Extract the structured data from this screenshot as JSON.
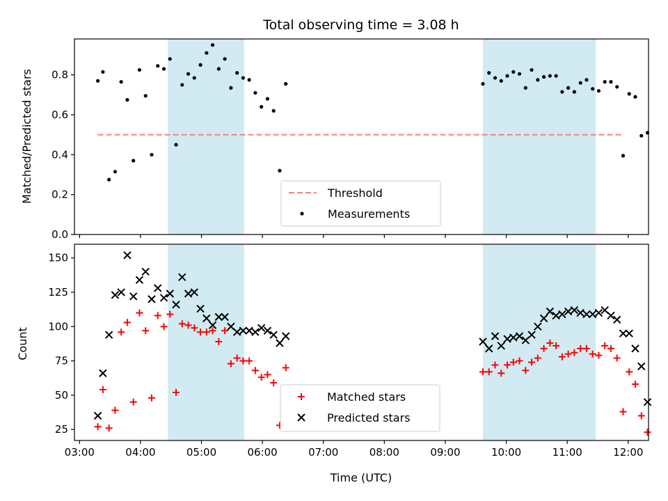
{
  "chart_data": {
    "title": "Total observing time = 3.08 h",
    "xlabel": "Time (UTC)",
    "x_unit": "hours UTC",
    "x_ticks": [
      "03:00",
      "04:00",
      "05:00",
      "06:00",
      "07:00",
      "08:00",
      "09:00",
      "10:00",
      "11:00",
      "12:00"
    ],
    "xlim": [
      "02:55",
      "12:20"
    ],
    "shaded_intervals": [
      {
        "start": "04:27",
        "end": "05:42"
      },
      {
        "start": "09:37",
        "end": "11:28"
      }
    ],
    "shade_color": "#add8e6",
    "panels": [
      {
        "type": "scatter",
        "ylabel": "Matched/Predicted stars",
        "ylim": [
          0,
          0.98
        ],
        "y_ticks": [
          "0.0",
          "0.2",
          "0.4",
          "0.6",
          "0.8"
        ],
        "legend_position": "lower-center",
        "threshold": {
          "name": "Threshold",
          "value": 0.5,
          "x_start": "03:18",
          "x_end": "11:55",
          "color": "#f08080"
        },
        "series": [
          {
            "name": "Measurements",
            "color": "#000000",
            "marker": "dot",
            "points": [
              [
                "03:18",
                0.77
              ],
              [
                "03:23",
                0.815
              ],
              [
                "03:29",
                0.275
              ],
              [
                "03:35",
                0.315
              ],
              [
                "03:41",
                0.765
              ],
              [
                "03:47",
                0.675
              ],
              [
                "03:53",
                0.37
              ],
              [
                "03:59",
                0.825
              ],
              [
                "04:05",
                0.695
              ],
              [
                "04:11",
                0.4
              ],
              [
                "04:17",
                0.845
              ],
              [
                "04:23",
                0.83
              ],
              [
                "04:29",
                0.88
              ],
              [
                "04:35",
                0.45
              ],
              [
                "04:41",
                0.75
              ],
              [
                "04:47",
                0.805
              ],
              [
                "04:53",
                0.785
              ],
              [
                "04:59",
                0.85
              ],
              [
                "05:05",
                0.91
              ],
              [
                "05:11",
                0.95
              ],
              [
                "05:17",
                0.83
              ],
              [
                "05:23",
                0.88
              ],
              [
                "05:29",
                0.735
              ],
              [
                "05:35",
                0.81
              ],
              [
                "05:41",
                0.785
              ],
              [
                "05:47",
                0.775
              ],
              [
                "05:53",
                0.71
              ],
              [
                "05:59",
                0.64
              ],
              [
                "06:05",
                0.68
              ],
              [
                "06:11",
                0.62
              ],
              [
                "06:17",
                0.32
              ],
              [
                "06:23",
                0.755
              ],
              [
                "09:37",
                0.755
              ],
              [
                "09:43",
                0.81
              ],
              [
                "09:49",
                0.785
              ],
              [
                "09:55",
                0.77
              ],
              [
                "10:01",
                0.795
              ],
              [
                "10:07",
                0.815
              ],
              [
                "10:13",
                0.805
              ],
              [
                "10:19",
                0.735
              ],
              [
                "10:25",
                0.825
              ],
              [
                "10:31",
                0.775
              ],
              [
                "10:37",
                0.79
              ],
              [
                "10:43",
                0.795
              ],
              [
                "10:49",
                0.795
              ],
              [
                "10:55",
                0.715
              ],
              [
                "11:01",
                0.735
              ],
              [
                "11:07",
                0.715
              ],
              [
                "11:13",
                0.76
              ],
              [
                "11:19",
                0.775
              ],
              [
                "11:25",
                0.73
              ],
              [
                "11:31",
                0.72
              ],
              [
                "11:37",
                0.765
              ],
              [
                "11:43",
                0.765
              ],
              [
                "11:49",
                0.74
              ],
              [
                "11:55",
                0.395
              ],
              [
                "12:01",
                0.705
              ],
              [
                "12:07",
                0.69
              ],
              [
                "12:13",
                0.495
              ],
              [
                "12:19",
                0.51
              ]
            ]
          }
        ]
      },
      {
        "type": "scatter",
        "ylabel": "Count",
        "ylim": [
          17,
          160
        ],
        "y_ticks": [
          "25",
          "50",
          "75",
          "100",
          "125",
          "150"
        ],
        "legend_position": "lower-center",
        "series": [
          {
            "name": "Matched stars",
            "color": "#ff0000",
            "marker": "plus",
            "points": [
              [
                "03:18",
                27
              ],
              [
                "03:23",
                54
              ],
              [
                "03:29",
                26
              ],
              [
                "03:35",
                39
              ],
              [
                "03:41",
                96
              ],
              [
                "03:47",
                103
              ],
              [
                "03:53",
                45
              ],
              [
                "03:59",
                110
              ],
              [
                "04:05",
                97
              ],
              [
                "04:11",
                48
              ],
              [
                "04:17",
                108
              ],
              [
                "04:23",
                100
              ],
              [
                "04:29",
                109
              ],
              [
                "04:35",
                52
              ],
              [
                "04:41",
                102
              ],
              [
                "04:47",
                101
              ],
              [
                "04:53",
                99
              ],
              [
                "04:59",
                96
              ],
              [
                "05:05",
                96
              ],
              [
                "05:11",
                97
              ],
              [
                "05:17",
                89
              ],
              [
                "05:23",
                97
              ],
              [
                "05:29",
                73
              ],
              [
                "05:35",
                77
              ],
              [
                "05:41",
                75
              ],
              [
                "05:47",
                75
              ],
              [
                "05:53",
                68
              ],
              [
                "05:59",
                63
              ],
              [
                "06:05",
                65
              ],
              [
                "06:11",
                59
              ],
              [
                "06:17",
                28
              ],
              [
                "06:23",
                70
              ],
              [
                "09:37",
                67
              ],
              [
                "09:43",
                67
              ],
              [
                "09:49",
                72
              ],
              [
                "09:55",
                66
              ],
              [
                "10:01",
                72
              ],
              [
                "10:07",
                74
              ],
              [
                "10:13",
                75
              ],
              [
                "10:19",
                68
              ],
              [
                "10:25",
                74
              ],
              [
                "10:31",
                77
              ],
              [
                "10:37",
                84
              ],
              [
                "10:43",
                88
              ],
              [
                "10:49",
                86
              ],
              [
                "10:55",
                78
              ],
              [
                "11:01",
                80
              ],
              [
                "11:07",
                81
              ],
              [
                "11:13",
                84
              ],
              [
                "11:19",
                84
              ],
              [
                "11:25",
                80
              ],
              [
                "11:31",
                79
              ],
              [
                "11:37",
                86
              ],
              [
                "11:43",
                84
              ],
              [
                "11:49",
                77
              ],
              [
                "11:55",
                38
              ],
              [
                "12:01",
                67
              ],
              [
                "12:07",
                58
              ],
              [
                "12:13",
                35
              ],
              [
                "12:19",
                23
              ]
            ]
          },
          {
            "name": "Predicted stars",
            "color": "#000000",
            "marker": "cross",
            "points": [
              [
                "03:18",
                35
              ],
              [
                "03:23",
                66
              ],
              [
                "03:29",
                94
              ],
              [
                "03:35",
                123
              ],
              [
                "03:41",
                125
              ],
              [
                "03:47",
                152
              ],
              [
                "03:53",
                122
              ],
              [
                "03:59",
                134
              ],
              [
                "04:05",
                140
              ],
              [
                "04:11",
                120
              ],
              [
                "04:17",
                128
              ],
              [
                "04:23",
                121
              ],
              [
                "04:29",
                124
              ],
              [
                "04:35",
                116
              ],
              [
                "04:41",
                136
              ],
              [
                "04:47",
                124
              ],
              [
                "04:53",
                125
              ],
              [
                "04:59",
                113
              ],
              [
                "05:05",
                106
              ],
              [
                "05:11",
                101
              ],
              [
                "05:17",
                107
              ],
              [
                "05:23",
                107
              ],
              [
                "05:29",
                100
              ],
              [
                "05:35",
                96
              ],
              [
                "05:41",
                97
              ],
              [
                "05:47",
                97
              ],
              [
                "05:53",
                96
              ],
              [
                "05:59",
                99
              ],
              [
                "06:05",
                97
              ],
              [
                "06:11",
                94
              ],
              [
                "06:17",
                88
              ],
              [
                "06:23",
                93
              ],
              [
                "09:37",
                89
              ],
              [
                "09:43",
                84
              ],
              [
                "09:49",
                93
              ],
              [
                "09:55",
                86
              ],
              [
                "10:01",
                91
              ],
              [
                "10:07",
                92
              ],
              [
                "10:13",
                93
              ],
              [
                "10:19",
                90
              ],
              [
                "10:25",
                94
              ],
              [
                "10:31",
                100
              ],
              [
                "10:37",
                106
              ],
              [
                "10:43",
                111
              ],
              [
                "10:49",
                108
              ],
              [
                "10:55",
                109
              ],
              [
                "11:01",
                111
              ],
              [
                "11:07",
                112
              ],
              [
                "11:13",
                110
              ],
              [
                "11:19",
                109
              ],
              [
                "11:25",
                109
              ],
              [
                "11:31",
                110
              ],
              [
                "11:37",
                112
              ],
              [
                "11:43",
                108
              ],
              [
                "11:49",
                105
              ],
              [
                "11:55",
                95
              ],
              [
                "12:01",
                95
              ],
              [
                "12:07",
                84
              ],
              [
                "12:13",
                71
              ],
              [
                "12:19",
                45
              ]
            ]
          }
        ]
      }
    ]
  }
}
